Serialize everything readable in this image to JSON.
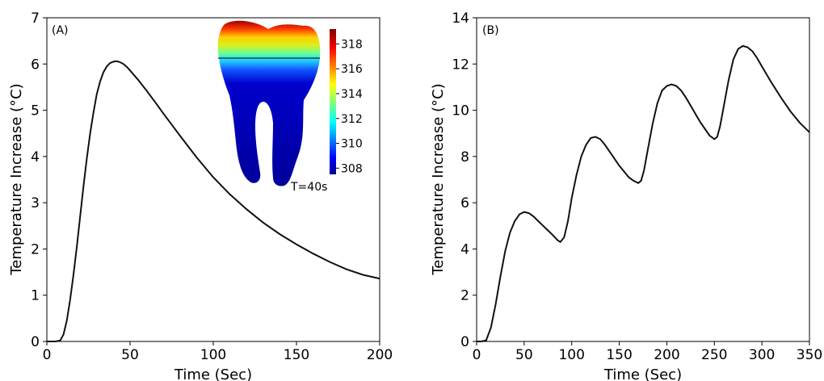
{
  "chart_data": [
    {
      "type": "line",
      "panel_label": "(A)",
      "xlabel": "Time (Sec)",
      "ylabel": "Temperature Increase (°C)",
      "xlim": [
        0,
        200
      ],
      "ylim": [
        0,
        7
      ],
      "xticks": [
        0,
        50,
        100,
        150,
        200
      ],
      "yticks": [
        0,
        1,
        2,
        3,
        4,
        5,
        6,
        7
      ],
      "grid": false,
      "series": [
        {
          "x": [
            0,
            5,
            8,
            10,
            12,
            14,
            16,
            18,
            20,
            22,
            24,
            26,
            28,
            30,
            32,
            34,
            36,
            38,
            40,
            42,
            44,
            46,
            48,
            50,
            55,
            60,
            65,
            70,
            75,
            80,
            90,
            100,
            110,
            120,
            130,
            140,
            150,
            160,
            170,
            180,
            190,
            200
          ],
          "y": [
            0,
            0,
            0.02,
            0.15,
            0.45,
            0.9,
            1.45,
            2.05,
            2.7,
            3.35,
            3.95,
            4.5,
            4.95,
            5.35,
            5.62,
            5.82,
            5.95,
            6.02,
            6.05,
            6.06,
            6.04,
            6.0,
            5.94,
            5.86,
            5.65,
            5.42,
            5.18,
            4.93,
            4.69,
            4.45,
            3.98,
            3.55,
            3.18,
            2.86,
            2.57,
            2.32,
            2.1,
            1.9,
            1.72,
            1.56,
            1.44,
            1.36
          ]
        }
      ],
      "inset": {
        "caption": "T=40s",
        "colorbar_ticks": [
          308,
          310,
          312,
          314,
          316,
          318
        ],
        "colorbar_range": [
          307.5,
          319.2
        ]
      }
    },
    {
      "type": "line",
      "panel_label": "(B)",
      "xlabel": "Time (Sec)",
      "ylabel": "Temperature Increase (°C)",
      "xlim": [
        0,
        350
      ],
      "ylim": [
        0,
        14
      ],
      "xticks": [
        0,
        50,
        100,
        150,
        200,
        250,
        300,
        350
      ],
      "yticks": [
        0,
        2,
        4,
        6,
        8,
        10,
        12,
        14
      ],
      "grid": false,
      "series": [
        {
          "x": [
            0,
            5,
            10,
            15,
            20,
            25,
            30,
            35,
            40,
            45,
            50,
            55,
            60,
            65,
            70,
            75,
            80,
            85,
            88,
            92,
            96,
            100,
            105,
            110,
            115,
            120,
            125,
            130,
            135,
            140,
            145,
            150,
            155,
            160,
            165,
            170,
            173,
            176,
            180,
            185,
            190,
            195,
            200,
            205,
            210,
            215,
            220,
            225,
            230,
            235,
            240,
            245,
            250,
            253,
            256,
            260,
            265,
            270,
            275,
            280,
            285,
            290,
            295,
            300,
            310,
            320,
            330,
            340,
            350
          ],
          "y": [
            0,
            0,
            0.05,
            0.6,
            1.6,
            2.8,
            3.9,
            4.7,
            5.2,
            5.5,
            5.6,
            5.55,
            5.4,
            5.2,
            5.0,
            4.8,
            4.6,
            4.38,
            4.3,
            4.5,
            5.2,
            6.2,
            7.2,
            8.0,
            8.5,
            8.8,
            8.85,
            8.75,
            8.5,
            8.2,
            7.9,
            7.6,
            7.35,
            7.1,
            6.95,
            6.85,
            6.95,
            7.4,
            8.3,
            9.4,
            10.3,
            10.85,
            11.05,
            11.12,
            11.05,
            10.85,
            10.55,
            10.2,
            9.85,
            9.5,
            9.2,
            8.9,
            8.75,
            8.85,
            9.3,
            10.2,
            11.3,
            12.2,
            12.65,
            12.78,
            12.72,
            12.55,
            12.25,
            11.9,
            11.2,
            10.55,
            9.95,
            9.45,
            9.05
          ]
        }
      ]
    }
  ]
}
